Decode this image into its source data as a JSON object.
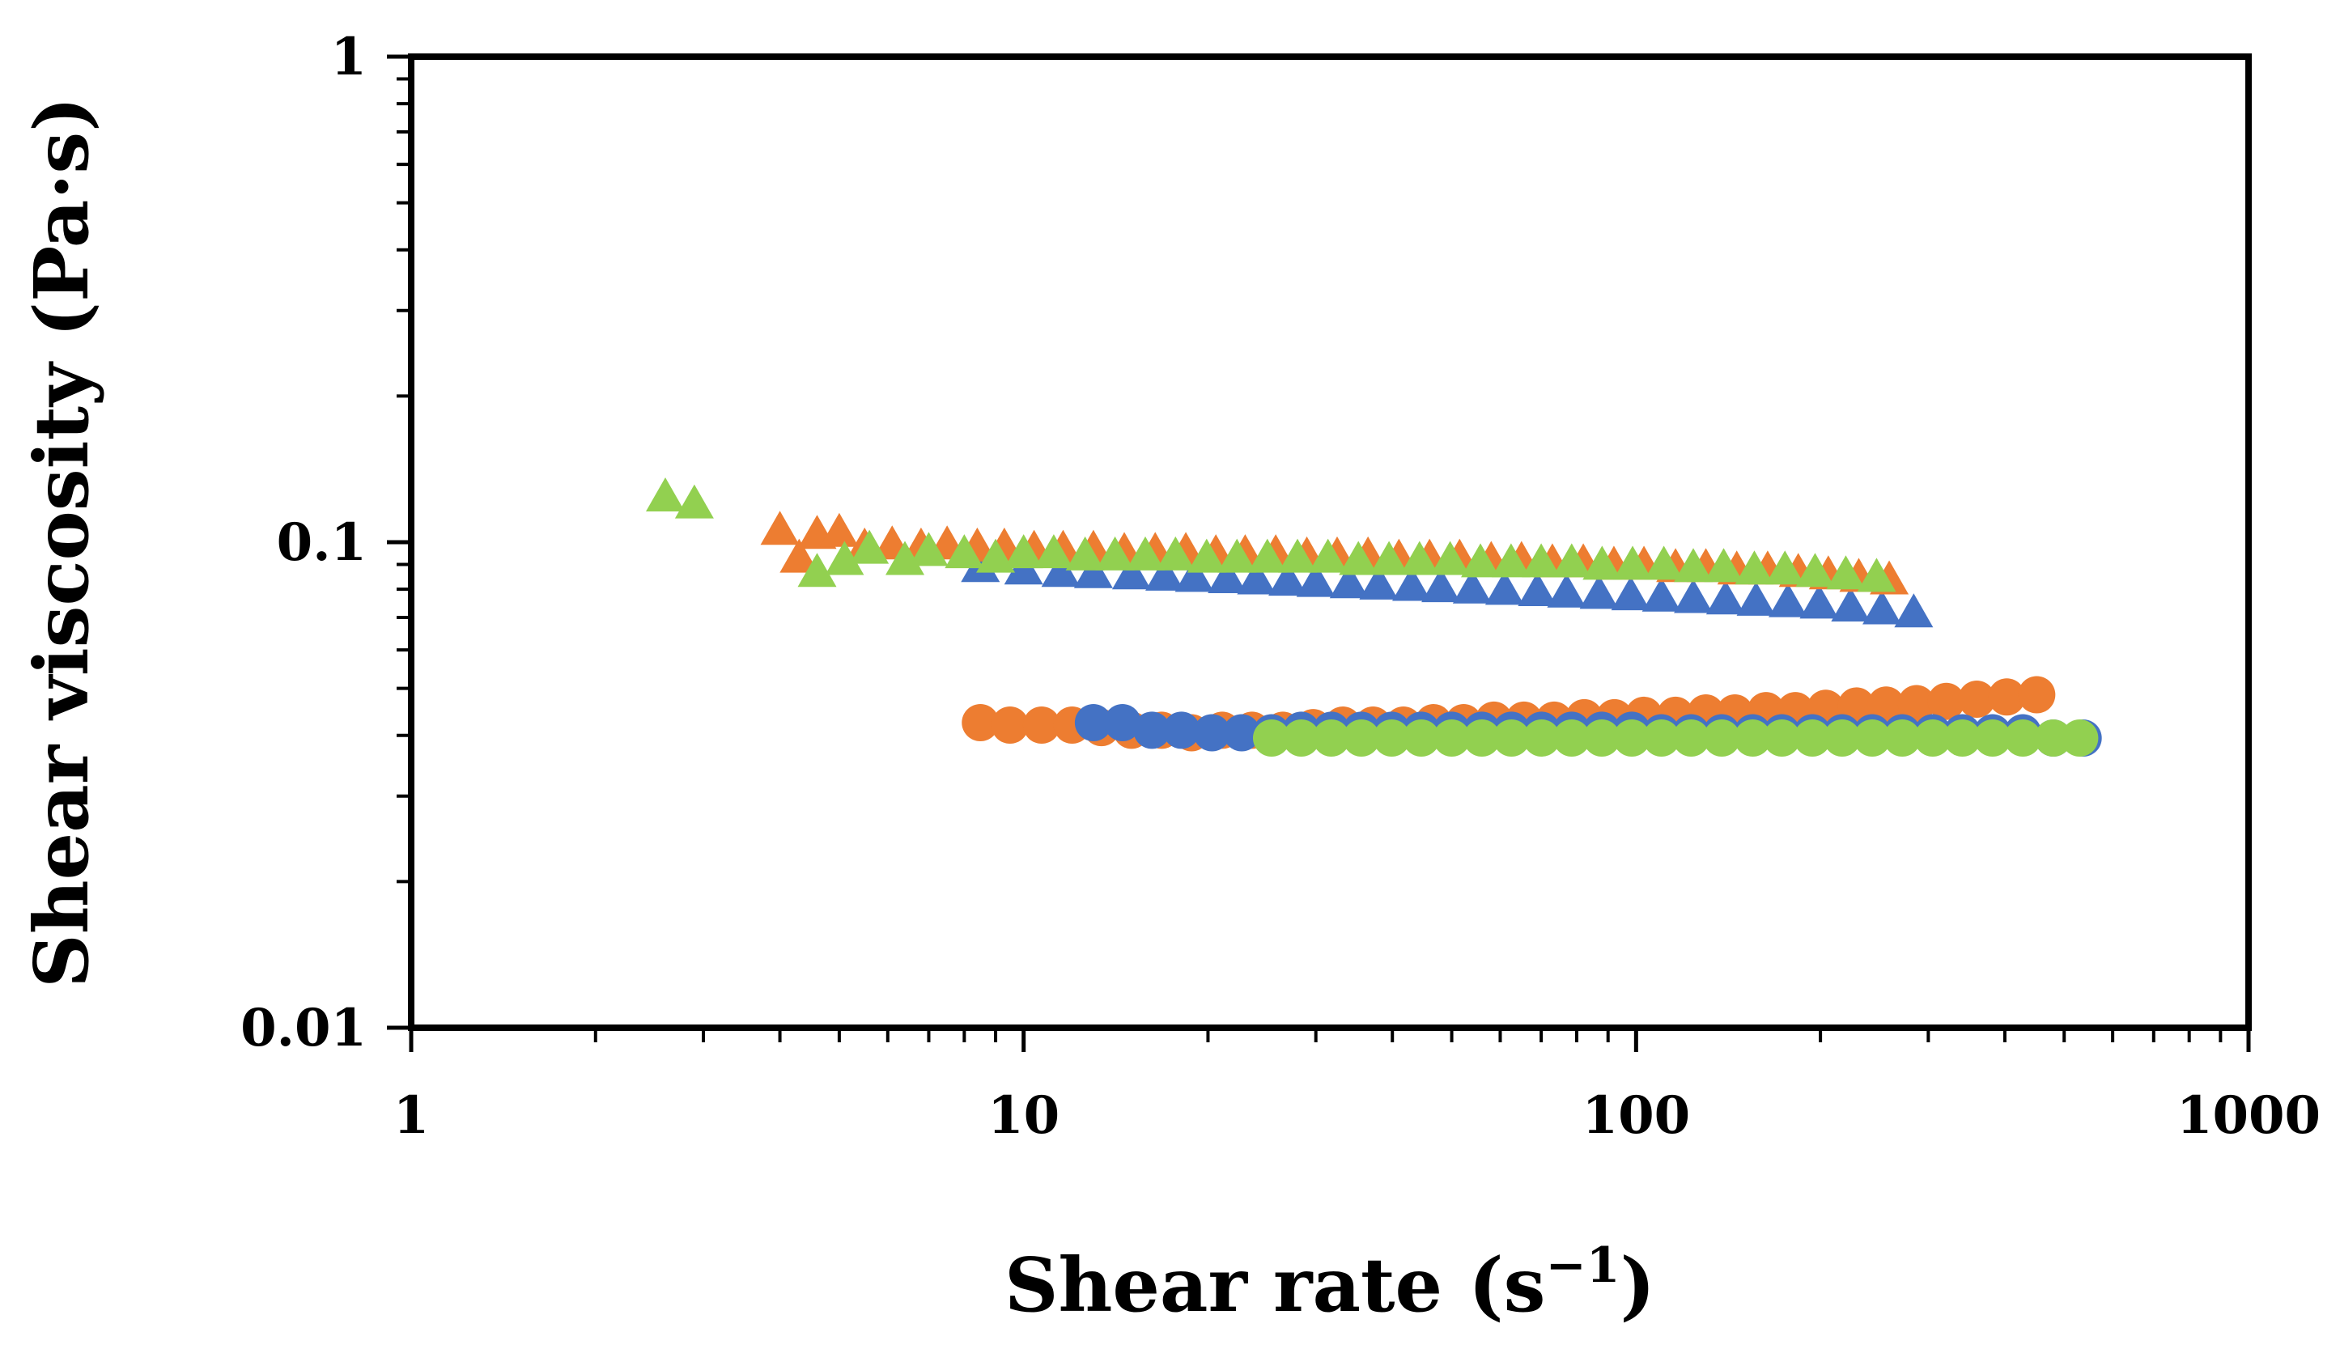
{
  "chart_data": {
    "type": "scatter",
    "title": "",
    "xlabel": "Shear rate (s",
    "xlabel_superscript": "−1",
    "xlabel_suffix": ")",
    "ylabel": "Shear viscosity (Pa·s)",
    "xscale": "log",
    "yscale": "log",
    "xlim": [
      1,
      1000
    ],
    "ylim": [
      0.01,
      1
    ],
    "x_ticks": [
      {
        "value": 1,
        "label": "1"
      },
      {
        "value": 10,
        "label": "10"
      },
      {
        "value": 100,
        "label": "100"
      },
      {
        "value": 1000,
        "label": "1000"
      }
    ],
    "y_ticks": [
      {
        "value": 0.01,
        "label": "0.01"
      },
      {
        "value": 0.1,
        "label": "0.1"
      },
      {
        "value": 1,
        "label": "1"
      }
    ],
    "grid": false,
    "legend": "none",
    "colors": {
      "blue": "#4472c4",
      "orange": "#ed7d31",
      "green": "#92d050"
    },
    "series": [
      {
        "name": "blue-triangles",
        "marker": "triangle",
        "color": "#4472c4",
        "x": [
          8.5,
          10,
          11.5,
          13,
          15,
          17,
          19,
          21.5,
          24,
          27,
          30,
          34,
          38,
          43,
          48,
          54,
          61,
          69,
          77,
          87,
          98,
          110,
          124,
          140,
          157,
          177,
          199,
          224,
          252,
          284
        ],
        "y": [
          0.088,
          0.087,
          0.086,
          0.0855,
          0.085,
          0.0845,
          0.084,
          0.0835,
          0.083,
          0.0825,
          0.082,
          0.0815,
          0.081,
          0.0805,
          0.08,
          0.0795,
          0.079,
          0.0785,
          0.078,
          0.0775,
          0.077,
          0.0765,
          0.076,
          0.0755,
          0.075,
          0.0745,
          0.074,
          0.073,
          0.072,
          0.071
        ]
      },
      {
        "name": "orange-triangles",
        "marker": "triangle",
        "color": "#ed7d31",
        "x": [
          4.0,
          4.3,
          4.6,
          5.0,
          5.5,
          6.1,
          6.8,
          7.5,
          8.4,
          9.3,
          10.4,
          11.6,
          13,
          14.6,
          16.4,
          18.4,
          20.6,
          23,
          25.8,
          29,
          32.5,
          36.5,
          41,
          46,
          51.5,
          58,
          65,
          73,
          82,
          92,
          103,
          116,
          130,
          146,
          164,
          184,
          206,
          231,
          259
        ],
        "y": [
          0.105,
          0.092,
          0.103,
          0.104,
          0.097,
          0.098,
          0.097,
          0.098,
          0.097,
          0.097,
          0.096,
          0.096,
          0.096,
          0.095,
          0.095,
          0.095,
          0.094,
          0.094,
          0.094,
          0.093,
          0.093,
          0.093,
          0.092,
          0.092,
          0.092,
          0.091,
          0.091,
          0.09,
          0.09,
          0.089,
          0.089,
          0.088,
          0.088,
          0.087,
          0.087,
          0.086,
          0.085,
          0.084,
          0.083
        ]
      },
      {
        "name": "green-triangles",
        "marker": "triangle",
        "color": "#92d050",
        "x": [
          2.6,
          2.9,
          4.6,
          5.1,
          5.6,
          6.4,
          7.0,
          8.0,
          9.0,
          10.0,
          11.2,
          12.6,
          14.1,
          15.8,
          17.7,
          19.9,
          22.3,
          25,
          28,
          31.4,
          35.2,
          39.5,
          44.3,
          49.7,
          55.7,
          62.5,
          70,
          78.5,
          88,
          98.7,
          111,
          124,
          139,
          156,
          175,
          196,
          220,
          247
        ],
        "y": [
          0.123,
          0.119,
          0.086,
          0.091,
          0.096,
          0.091,
          0.095,
          0.094,
          0.092,
          0.094,
          0.094,
          0.093,
          0.093,
          0.093,
          0.093,
          0.092,
          0.092,
          0.092,
          0.092,
          0.092,
          0.091,
          0.091,
          0.091,
          0.091,
          0.09,
          0.09,
          0.09,
          0.09,
          0.089,
          0.089,
          0.089,
          0.088,
          0.088,
          0.087,
          0.087,
          0.086,
          0.085,
          0.084
        ]
      },
      {
        "name": "orange-circles",
        "marker": "circle",
        "color": "#ed7d31",
        "x": [
          8.5,
          9.5,
          10.7,
          12,
          13.4,
          15,
          16.8,
          18.8,
          21.1,
          23.6,
          26.5,
          29.7,
          33.2,
          37.2,
          41.7,
          46.7,
          52.3,
          58.6,
          65.6,
          73.5,
          82.3,
          92.2,
          103,
          116,
          130,
          145,
          163,
          182,
          204,
          229,
          256,
          287,
          321,
          360,
          403,
          451
        ],
        "y": [
          0.0425,
          0.042,
          0.042,
          0.042,
          0.0415,
          0.041,
          0.041,
          0.0405,
          0.041,
          0.041,
          0.041,
          0.0415,
          0.042,
          0.042,
          0.042,
          0.0425,
          0.0425,
          0.043,
          0.043,
          0.043,
          0.0435,
          0.0435,
          0.044,
          0.044,
          0.0445,
          0.0445,
          0.045,
          0.045,
          0.0455,
          0.046,
          0.0462,
          0.0465,
          0.047,
          0.0475,
          0.048,
          0.0485
        ]
      },
      {
        "name": "blue-circles",
        "marker": "circle",
        "color": "#4472c4",
        "x": [
          13,
          14.5,
          16.2,
          18.1,
          20.3,
          22.7,
          25.4,
          28.4,
          31.8,
          35.6,
          39.9,
          44.6,
          50,
          56,
          62.6,
          70.1,
          78.5,
          87.9,
          98.4,
          110,
          123,
          138,
          155,
          173,
          194,
          217,
          243,
          272,
          305,
          341,
          382,
          428,
          480,
          537
        ],
        "y": [
          0.0425,
          0.0425,
          0.041,
          0.041,
          0.0405,
          0.0405,
          0.0405,
          0.041,
          0.041,
          0.041,
          0.041,
          0.041,
          0.041,
          0.041,
          0.041,
          0.041,
          0.041,
          0.041,
          0.041,
          0.0405,
          0.0405,
          0.0405,
          0.0405,
          0.0405,
          0.0405,
          0.0405,
          0.0405,
          0.0405,
          0.0405,
          0.0405,
          0.0405,
          0.0405,
          0.0395,
          0.0395
        ]
      },
      {
        "name": "green-circles",
        "marker": "circle",
        "color": "#92d050",
        "x": [
          25.4,
          28.4,
          31.8,
          35.6,
          39.9,
          44.6,
          50,
          56,
          62.6,
          70.1,
          78.5,
          87.9,
          98.4,
          110,
          123,
          138,
          155,
          173,
          194,
          217,
          243,
          272,
          305,
          341,
          382,
          428,
          480,
          530
        ],
        "y": [
          0.0395,
          0.0395,
          0.0395,
          0.0395,
          0.0395,
          0.0395,
          0.0395,
          0.0395,
          0.0395,
          0.0395,
          0.0395,
          0.0395,
          0.0395,
          0.0395,
          0.0395,
          0.0395,
          0.0395,
          0.0395,
          0.0395,
          0.0395,
          0.0395,
          0.0395,
          0.0395,
          0.0395,
          0.0395,
          0.0395,
          0.0395,
          0.0395
        ]
      }
    ]
  }
}
